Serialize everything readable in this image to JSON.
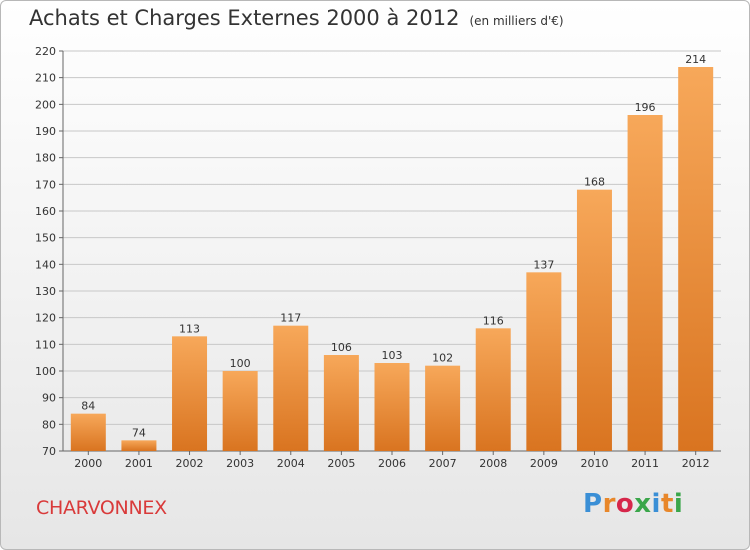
{
  "title": "Achats et Charges Externes 2000 à 2012",
  "unit": "(en milliers d'€)",
  "town": "CHARVONNEX",
  "brand": {
    "letters": [
      {
        "ch": "P",
        "color": "#3a8fd6"
      },
      {
        "ch": "r",
        "color": "#e8872a"
      },
      {
        "ch": "o",
        "color": "#d6264a"
      },
      {
        "ch": "x",
        "color": "#3aa64a"
      },
      {
        "ch": "i",
        "color": "#3a8fd6"
      },
      {
        "ch": "t",
        "color": "#e8872a"
      },
      {
        "ch": "i",
        "color": "#3aa64a"
      }
    ]
  },
  "colors": {
    "bar_light": "#f7a85a",
    "bar_dark": "#d97420",
    "town": "#d93a3a"
  },
  "chart_data": {
    "type": "bar",
    "categories": [
      "2000",
      "2001",
      "2002",
      "2003",
      "2004",
      "2005",
      "2006",
      "2007",
      "2008",
      "2009",
      "2010",
      "2011",
      "2012"
    ],
    "values": [
      84,
      74,
      113,
      100,
      117,
      106,
      103,
      102,
      116,
      137,
      168,
      196,
      214
    ],
    "ylim": [
      70,
      220
    ],
    "yticks": [
      70,
      80,
      90,
      100,
      110,
      120,
      130,
      140,
      150,
      160,
      170,
      180,
      190,
      200,
      210,
      220
    ],
    "grid": true
  }
}
